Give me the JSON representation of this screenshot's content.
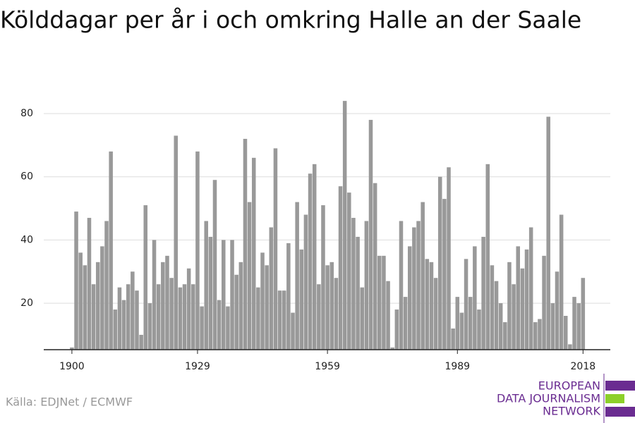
{
  "chart_data": {
    "type": "bar",
    "title": "Kölddagar per år i och omkring Halle an der Saale",
    "source": "Källa: EDJNet / ECMWF",
    "logo": [
      "EUROPEAN",
      "DATA JOURNALISM",
      "NETWORK"
    ],
    "color": "#999999",
    "grid": true,
    "x": [
      1900,
      1901,
      1902,
      1903,
      1904,
      1905,
      1906,
      1907,
      1908,
      1909,
      1910,
      1911,
      1912,
      1913,
      1914,
      1915,
      1916,
      1917,
      1918,
      1919,
      1920,
      1921,
      1922,
      1923,
      1924,
      1925,
      1926,
      1927,
      1928,
      1929,
      1930,
      1931,
      1932,
      1933,
      1934,
      1935,
      1936,
      1937,
      1938,
      1939,
      1940,
      1941,
      1942,
      1943,
      1944,
      1945,
      1946,
      1947,
      1948,
      1949,
      1950,
      1951,
      1952,
      1953,
      1954,
      1955,
      1956,
      1957,
      1958,
      1959,
      1960,
      1961,
      1962,
      1963,
      1964,
      1965,
      1966,
      1967,
      1968,
      1969,
      1970,
      1971,
      1972,
      1973,
      1974,
      1975,
      1976,
      1977,
      1978,
      1979,
      1980,
      1981,
      1982,
      1983,
      1984,
      1985,
      1986,
      1987,
      1988,
      1989,
      1990,
      1991,
      1992,
      1993,
      1994,
      1995,
      1996,
      1997,
      1998,
      1999,
      2000,
      2001,
      2002,
      2003,
      2004,
      2005,
      2006,
      2007,
      2008,
      2009,
      2010,
      2011,
      2012,
      2013,
      2014,
      2015,
      2016,
      2017,
      2018
    ],
    "values": [
      6,
      49,
      36,
      32,
      47,
      26,
      33,
      38,
      46,
      68,
      18,
      25,
      21,
      26,
      30,
      24,
      10,
      51,
      20,
      40,
      26,
      33,
      35,
      28,
      73,
      25,
      26,
      31,
      26,
      68,
      19,
      46,
      41,
      59,
      21,
      40,
      19,
      40,
      29,
      33,
      72,
      52,
      66,
      25,
      36,
      32,
      44,
      69,
      24,
      24,
      39,
      17,
      52,
      37,
      48,
      61,
      64,
      26,
      51,
      32,
      33,
      28,
      57,
      84,
      55,
      47,
      41,
      25,
      46,
      78,
      58,
      35,
      35,
      27,
      6,
      18,
      46,
      22,
      38,
      44,
      46,
      52,
      34,
      33,
      28,
      60,
      53,
      63,
      12,
      22,
      17,
      34,
      22,
      38,
      18,
      41,
      64,
      32,
      27,
      20,
      14,
      33,
      26,
      38,
      31,
      37,
      44,
      14,
      15,
      35,
      79,
      20,
      30,
      48,
      16,
      7,
      22,
      20,
      28
    ],
    "xlim": [
      1893.5,
      2024.3
    ],
    "xticks": [
      1900,
      1929,
      1959,
      1989,
      2018
    ],
    "ylim": [
      5.3,
      84.7
    ],
    "yticks": [
      20,
      40,
      60,
      80
    ]
  }
}
